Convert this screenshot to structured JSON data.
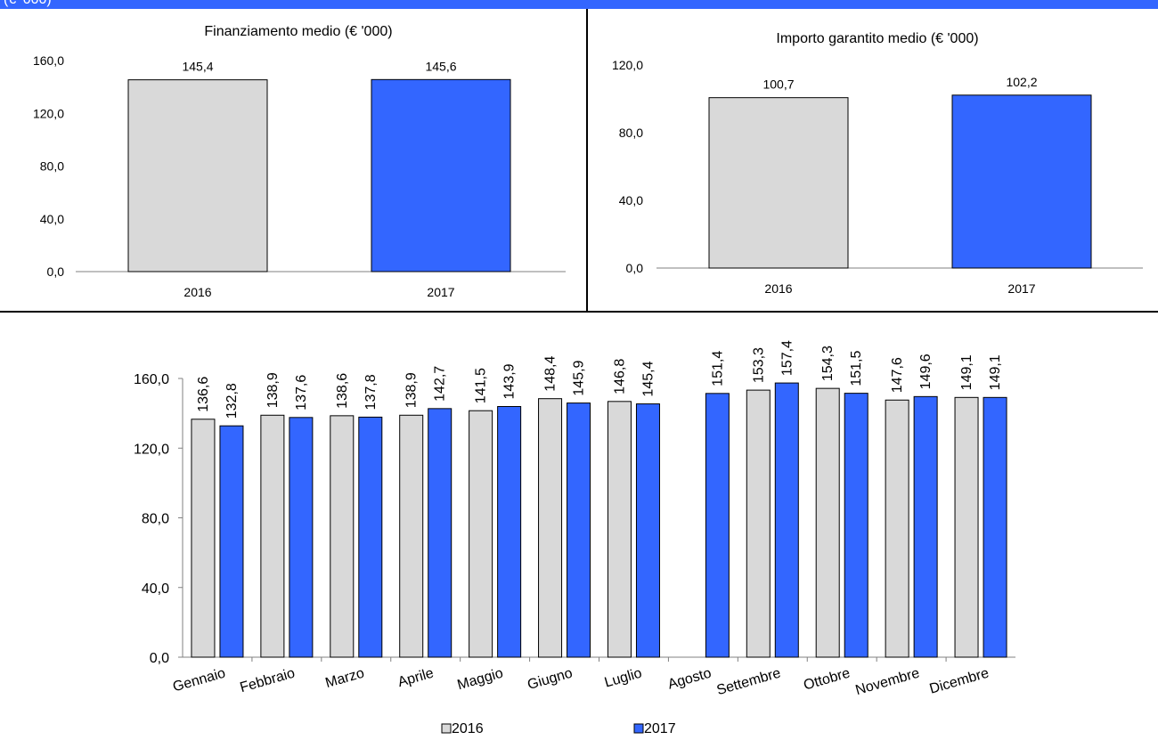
{
  "header": {
    "text": "(€ '000)"
  },
  "colors": {
    "header": "#3366ff",
    "series_2016": "#d9d9d9",
    "series_2017": "#3366ff",
    "divider": "#000000"
  },
  "chart_data": [
    {
      "type": "bar",
      "title": "Finanziamento medio (€ '000)",
      "categories": [
        "2016",
        "2017"
      ],
      "values": [
        145.4,
        145.6
      ],
      "value_labels": [
        "145,4",
        "145,6"
      ],
      "yticks": [
        "0,0",
        "40,0",
        "80,0",
        "120,0",
        "160,0"
      ],
      "ylim": [
        0,
        160
      ],
      "bar_colors": [
        "#d9d9d9",
        "#3366ff"
      ],
      "grid": false
    },
    {
      "type": "bar",
      "title": "Importo garantito medio (€ '000)",
      "categories": [
        "2016",
        "2017"
      ],
      "values": [
        100.7,
        102.2
      ],
      "value_labels": [
        "100,7",
        "102,2"
      ],
      "yticks": [
        "0,0",
        "40,0",
        "80,0",
        "120,0"
      ],
      "ylim": [
        0,
        120
      ],
      "bar_colors": [
        "#d9d9d9",
        "#3366ff"
      ],
      "grid": false
    },
    {
      "type": "bar",
      "categories": [
        "Gennaio",
        "Febbraio",
        "Marzo",
        "Aprile",
        "Maggio",
        "Giugno",
        "Luglio",
        "Agosto",
        "Settembre",
        "Ottobre",
        "Novembre",
        "Dicembre"
      ],
      "series": [
        {
          "name": "2016",
          "color": "#d9d9d9",
          "values": [
            136.6,
            138.9,
            138.6,
            138.9,
            141.5,
            148.4,
            146.8,
            null,
            153.3,
            154.3,
            147.6,
            149.1
          ],
          "value_labels": [
            "136,6",
            "138,9",
            "138,6",
            "138,9",
            "141,5",
            "148,4",
            "146,8",
            "",
            "153,3",
            "154,3",
            "147,6",
            "149,1"
          ]
        },
        {
          "name": "2017",
          "color": "#3366ff",
          "values": [
            132.8,
            137.6,
            137.8,
            142.7,
            143.9,
            145.9,
            145.4,
            151.4,
            157.4,
            151.5,
            149.6,
            149.1
          ],
          "value_labels": [
            "132,8",
            "137,6",
            "137,8",
            "142,7",
            "143,9",
            "145,9",
            "145,4",
            "151,4",
            "157,4",
            "151,5",
            "149,6",
            "149,1"
          ]
        }
      ],
      "yticks": [
        "0,0",
        "40,0",
        "80,0",
        "120,0",
        "160,0"
      ],
      "ylim": [
        0,
        160
      ],
      "legend": "bottom",
      "grid": false
    }
  ]
}
